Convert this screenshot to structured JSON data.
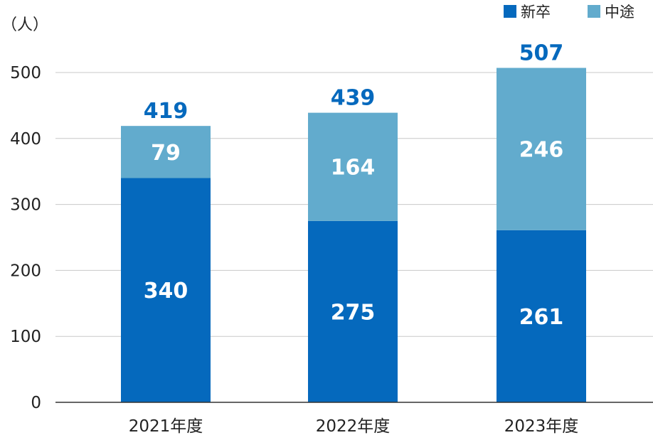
{
  "chart_data": {
    "type": "bar",
    "stacked": true,
    "unit_label": "（人）",
    "categories": [
      "2021年度",
      "2022年度",
      "2023年度"
    ],
    "series": [
      {
        "name": "新卒",
        "values": [
          340,
          275,
          261
        ],
        "color": "#0569bd"
      },
      {
        "name": "中途",
        "values": [
          79,
          164,
          246
        ],
        "color": "#62abcd"
      }
    ],
    "totals": [
      419,
      439,
      507
    ],
    "total_color": "#0569bd",
    "ylim": [
      0,
      500
    ],
    "yticks": [
      "0",
      "100",
      "200",
      "300",
      "400",
      "500"
    ],
    "grid": true,
    "legend": "top-right"
  }
}
